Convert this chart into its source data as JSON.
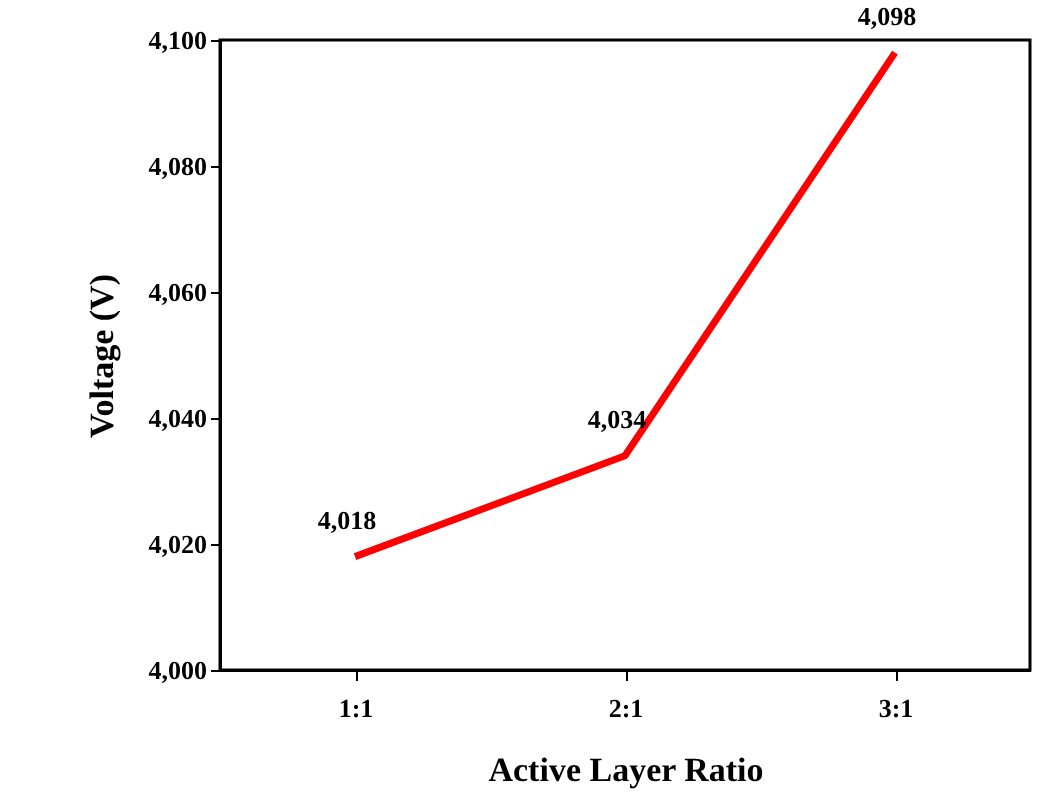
{
  "chart_data": {
    "type": "line",
    "xlabel": "Active Layer Ratio",
    "ylabel": "Voltage (V)",
    "categories": [
      "1:1",
      "2:1",
      "3:1"
    ],
    "series": [
      {
        "color": "#ff0000",
        "values": [
          4018,
          4034,
          4098
        ],
        "value_labels": [
          "4,018",
          "4,034",
          "4,098"
        ]
      }
    ],
    "ylim": [
      4000,
      4100
    ],
    "yticks": [
      {
        "value": 4000,
        "label": "4,000"
      },
      {
        "value": 4020,
        "label": "4,020"
      },
      {
        "value": 4040,
        "label": "4,040"
      },
      {
        "value": 4060,
        "label": "4,060"
      },
      {
        "value": 4080,
        "label": "4,080"
      },
      {
        "value": 4100,
        "label": "4,100"
      }
    ],
    "grid": false,
    "marker": "none",
    "line_style": "solid"
  }
}
